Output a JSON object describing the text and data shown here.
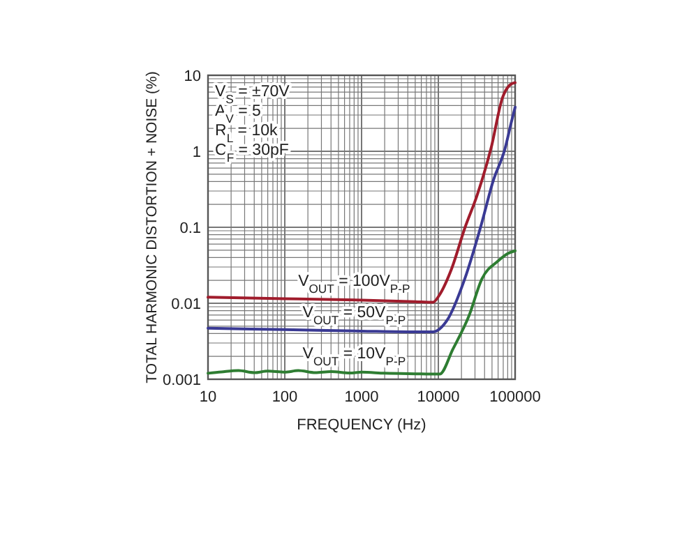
{
  "chart_data": {
    "type": "line",
    "xlabel": "FREQUENCY (Hz)",
    "ylabel": "TOTAL HARMONIC DISTORTION + NOISE (%)",
    "log": "xy",
    "grid": true,
    "line_style": "solid",
    "xlim": [
      10,
      100000
    ],
    "ylim": [
      0.001,
      10
    ],
    "xticks": [
      10,
      {
        "value": 20,
        "label": null
      },
      {
        "value": 30,
        "label": null
      },
      {
        "value": 40,
        "label": null
      },
      {
        "value": 50,
        "label": null
      },
      {
        "value": 60,
        "label": null
      },
      {
        "value": 70,
        "label": null
      },
      {
        "value": 80,
        "label": null
      },
      {
        "value": 90,
        "label": null
      },
      100,
      {
        "value": 200,
        "label": null
      },
      {
        "value": 300,
        "label": null
      },
      {
        "value": 400,
        "label": null
      },
      {
        "value": 500,
        "label": null
      },
      {
        "value": 600,
        "label": null
      },
      {
        "value": 700,
        "label": null
      },
      {
        "value": 800,
        "label": null
      },
      {
        "value": 900,
        "label": null
      },
      1000,
      {
        "value": 2000,
        "label": null
      },
      {
        "value": 3000,
        "label": null
      },
      {
        "value": 4000,
        "label": null
      },
      {
        "value": 5000,
        "label": null
      },
      {
        "value": 6000,
        "label": null
      },
      {
        "value": 7000,
        "label": null
      },
      {
        "value": 8000,
        "label": null
      },
      {
        "value": 9000,
        "label": null
      },
      10000,
      {
        "value": 20000,
        "label": null
      },
      {
        "value": 30000,
        "label": null
      },
      {
        "value": 40000,
        "label": null
      },
      {
        "value": 50000,
        "label": null
      },
      {
        "value": 60000,
        "label": null
      },
      {
        "value": 70000,
        "label": null
      },
      {
        "value": 80000,
        "label": null
      },
      {
        "value": 90000,
        "label": null
      },
      100000
    ],
    "yticks": [
      0.001,
      {
        "value": 0.002,
        "label": null
      },
      {
        "value": 0.003,
        "label": null
      },
      {
        "value": 0.004,
        "label": null
      },
      {
        "value": 0.005,
        "label": null
      },
      {
        "value": 0.006,
        "label": null
      },
      {
        "value": 0.007,
        "label": null
      },
      {
        "value": 0.008,
        "label": null
      },
      {
        "value": 0.009,
        "label": null
      },
      0.01,
      {
        "value": 0.02,
        "label": null
      },
      {
        "value": 0.03,
        "label": null
      },
      {
        "value": 0.04,
        "label": null
      },
      {
        "value": 0.05,
        "label": null
      },
      {
        "value": 0.06,
        "label": null
      },
      {
        "value": 0.07,
        "label": null
      },
      {
        "value": 0.08,
        "label": null
      },
      {
        "value": 0.09,
        "label": null
      },
      0.1,
      {
        "value": 0.2,
        "label": null
      },
      {
        "value": 0.3,
        "label": null
      },
      {
        "value": 0.4,
        "label": null
      },
      {
        "value": 0.5,
        "label": null
      },
      {
        "value": 0.6,
        "label": null
      },
      {
        "value": 0.7,
        "label": null
      },
      {
        "value": 0.8,
        "label": null
      },
      {
        "value": 0.9,
        "label": null
      },
      1,
      {
        "value": 2,
        "label": null
      },
      {
        "value": 3,
        "label": null
      },
      {
        "value": 4,
        "label": null
      },
      {
        "value": 5,
        "label": null
      },
      {
        "value": 6,
        "label": null
      },
      {
        "value": 7,
        "label": null
      },
      {
        "value": 8,
        "label": null
      },
      {
        "value": 9,
        "label": null
      },
      10
    ],
    "annotations": [
      "V$_{S}$ = ±70V",
      "A$_{V}$ = 5",
      "R$_{L}$ = 10k",
      "C$_{F}$ = 30pF"
    ],
    "series": [
      {
        "name": "V$_{OUT}$ = 100V$_{P-P}$",
        "color": "#a01c2c",
        "x": [
          10,
          100,
          1000,
          5000,
          8500,
          10400,
          14800,
          22300,
          31800,
          48400,
          68600,
          86000,
          100000
        ],
        "values": [
          0.012,
          0.0115,
          0.011,
          0.0105,
          0.0103,
          0.013,
          0.028,
          0.1,
          0.26,
          1.08,
          5.1,
          7.5,
          8
        ]
      },
      {
        "name": "V$_{OUT}$ = 50V$_{P-P}$",
        "color": "#3a3a94",
        "x": [
          10,
          100,
          1000,
          5000,
          8500,
          12900,
          22100,
          36400,
          51900,
          73600,
          90000,
          100000
        ],
        "values": [
          0.0047,
          0.0045,
          0.0043,
          0.0042,
          0.0042,
          0.0059,
          0.021,
          0.11,
          0.41,
          1.07,
          2.5,
          3.8
        ]
      },
      {
        "name": "V$_{OUT}$ = 10V$_{P-P}$",
        "color": "#2e7d32",
        "x": [
          10,
          15,
          25,
          40,
          60,
          100,
          150,
          250,
          400,
          700,
          1000,
          2000,
          5000,
          10400,
          15500,
          25000,
          37000,
          60000,
          80000,
          100000
        ],
        "values": [
          0.0012,
          0.00125,
          0.0013,
          0.00122,
          0.00128,
          0.00124,
          0.0013,
          0.00122,
          0.00126,
          0.00121,
          0.00124,
          0.0012,
          0.00118,
          0.00117,
          0.0025,
          0.0068,
          0.021,
          0.036,
          0.045,
          0.049
        ]
      }
    ]
  }
}
